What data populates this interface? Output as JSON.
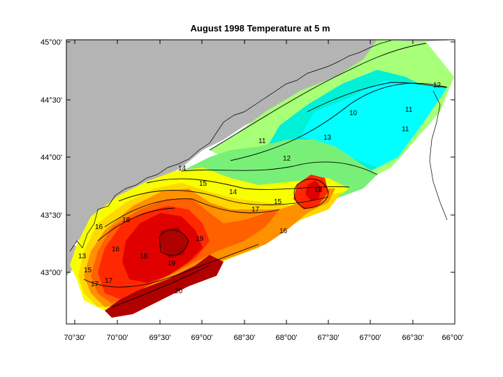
{
  "title": "August 1998  Temperature at 5 m",
  "x_ticks": [
    "70°30'",
    "70°00'",
    "69°30'",
    "69°00'",
    "68°30'",
    "68°00'",
    "67°30'",
    "67°00'",
    "66°30'",
    "66°00'"
  ],
  "y_ticks": [
    "45°00'",
    "44°30'",
    "44°00'",
    "43°30'",
    "43°00'"
  ],
  "contour_labels": [
    "12",
    "11",
    "10",
    "11",
    "11",
    "12",
    "13",
    "14",
    "15",
    "16",
    "17",
    "18",
    "19",
    "20",
    "15",
    "16",
    "17",
    "18",
    "13",
    "14",
    "15",
    "16",
    "17",
    "18",
    "19"
  ],
  "colors": {
    "land": "#b4b4b4",
    "t10": "#00ffff",
    "t11": "#00f0d8",
    "t12": "#a8ff78",
    "t13": "#78f078",
    "t14": "#f8ff00",
    "t15": "#ffd800",
    "t16": "#ff9000",
    "t17": "#ff6000",
    "t18": "#ff2800",
    "t19": "#e00000",
    "t20": "#b00000"
  }
}
